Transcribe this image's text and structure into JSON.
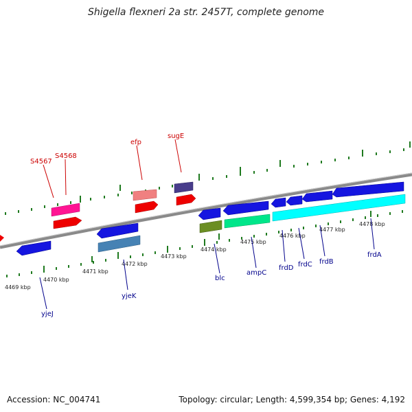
{
  "header": {
    "title": "Shigella flexneri 2a str. 2457T, complete genome"
  },
  "footer": {
    "accession": "Accession: NC_004741",
    "topology": "Topology: circular; Length: 4,599,354 bp; Genes: 4,192"
  },
  "scale_labels": [
    "4469 kbp",
    "4470 kbp",
    "4471 kbp",
    "4472 kbp",
    "4473 kbp",
    "4474 kbp",
    "4475 kbp",
    "4476 kbp",
    "4477 kbp",
    "4478 kbp"
  ],
  "genes_top": [
    "S4567",
    "S4568",
    "efp",
    "sugE"
  ],
  "genes_bottom": [
    "yjeJ",
    "yjeK",
    "blc",
    "ampC",
    "frdD",
    "frdC",
    "frdB",
    "frdA"
  ],
  "colors": {
    "backbone": "#8a8a8a",
    "top_label": "#cc0000",
    "bottom_label": "#00008b",
    "tick": "#1f7a1f"
  }
}
